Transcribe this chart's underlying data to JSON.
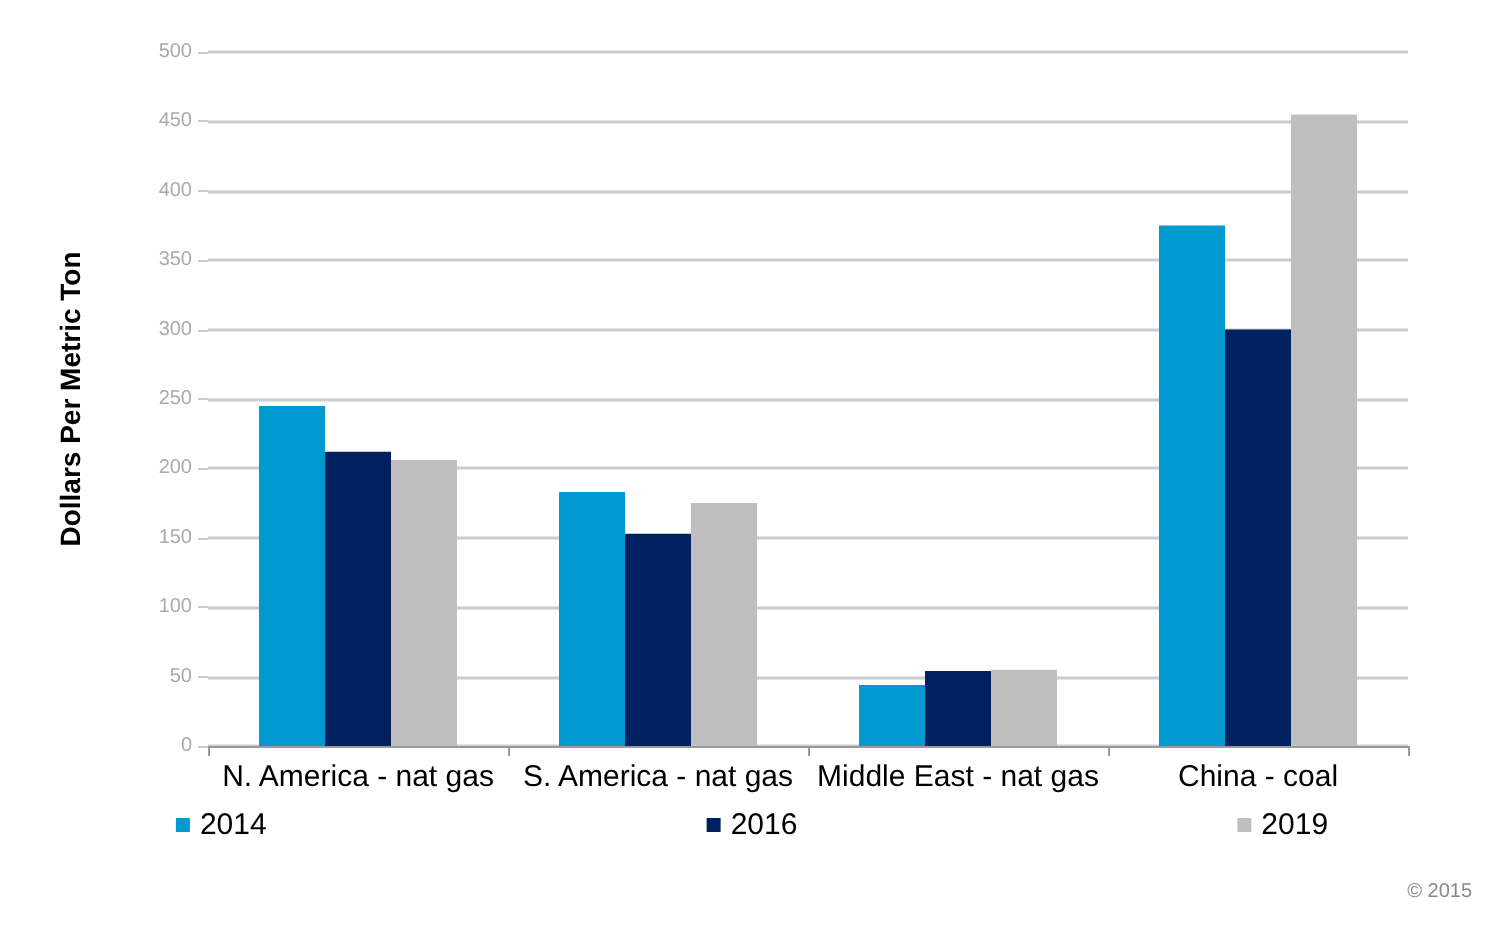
{
  "chart_data": {
    "type": "bar",
    "ylabel": "Dollars Per Metric Ton",
    "categories": [
      "N. America - nat gas",
      "S. America - nat gas",
      "Middle East - nat gas",
      "China - coal"
    ],
    "series": [
      {
        "name": "2014",
        "color": "#0099d0",
        "values": [
          245,
          183,
          44,
          375
        ]
      },
      {
        "name": "2016",
        "color": "#002060",
        "values": [
          212,
          153,
          54,
          300
        ]
      },
      {
        "name": "2019",
        "color": "#bfbfbf",
        "values": [
          206,
          175,
          55,
          455
        ]
      }
    ],
    "ylim": [
      0,
      500
    ],
    "yticks": [
      0,
      50,
      100,
      150,
      200,
      250,
      300,
      350,
      400,
      450,
      500
    ],
    "grid": "y",
    "legend": "bottom",
    "annotations": [
      "© 2015"
    ]
  }
}
